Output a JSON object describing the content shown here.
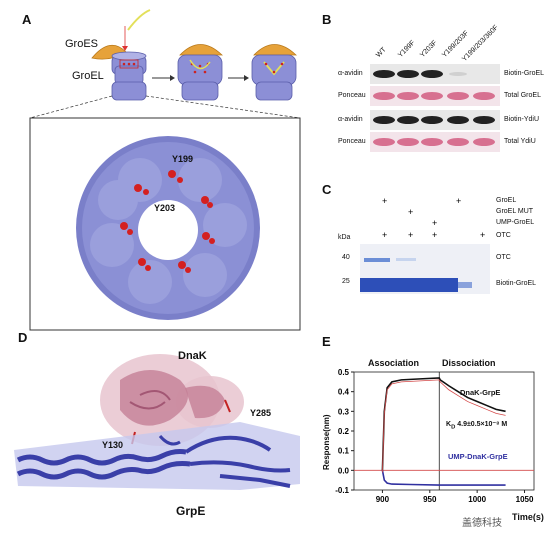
{
  "panels": {
    "a": "A",
    "b": "B",
    "c": "C",
    "d": "D",
    "e": "E"
  },
  "panel_a": {
    "groes_label": "GroES",
    "groel_label": "GroEL",
    "y199_label": "Y199",
    "y203_label": "Y203"
  },
  "panel_b": {
    "columns": [
      "WT",
      "Y199F",
      "Y203F",
      "Y199/203F",
      "Y199/203/360F"
    ],
    "rows": [
      {
        "left": "α-avidin",
        "right": "Biotin-GroEL"
      },
      {
        "left": "Ponceau",
        "right": "Total GroEL"
      },
      {
        "left": "α-avidin",
        "right": "Biotin-YdiU"
      },
      {
        "left": "Ponceau",
        "right": "Total YdiU"
      }
    ]
  },
  "panel_c": {
    "conditions": [
      "GroEL",
      "GroEL MUT",
      "UMP-GroEL",
      "OTC"
    ],
    "kda_label": "kDa",
    "marker_40": "40",
    "marker_25": "25",
    "band_otc": "OTC",
    "band_biotin": "Biotin-GroEL"
  },
  "panel_d": {
    "dnak_label": "DnaK",
    "y285_label": "Y285",
    "y130_label": "Y130",
    "grpe_label": "GrpE"
  },
  "panel_e": {
    "association": "Association",
    "dissociation": "Dissociation",
    "legend_dnak": "DnaK-GrpE",
    "kd_label": "K",
    "kd_sub": "D",
    "kd_value": "4.9±0.5×10⁻⁸ M",
    "legend_ump": "UMP-DnaK-GrpE",
    "ylabel": "Response(nm)",
    "xlabel": "Time(s)",
    "watermark": "盖德科技",
    "colors": {
      "dnak": "#111111",
      "ump": "#3030a0",
      "fit": "#d44a4a"
    }
  },
  "chart_data": {
    "type": "line",
    "xlabel": "Time(s)",
    "ylabel": "Response(nm)",
    "xlim": [
      870,
      1060
    ],
    "ylim": [
      -0.1,
      0.5
    ],
    "xticks": [
      900,
      950,
      1000,
      1050
    ],
    "yticks": [
      -0.1,
      0.0,
      0.1,
      0.2,
      0.3,
      0.4,
      0.5
    ],
    "series": [
      {
        "name": "DnaK-GrpE",
        "x": [
          900,
          902,
          905,
          910,
          920,
          940,
          960,
          961,
          970,
          980,
          990,
          1000,
          1010,
          1020,
          1030
        ],
        "values": [
          0.0,
          0.3,
          0.42,
          0.45,
          0.46,
          0.465,
          0.47,
          0.46,
          0.43,
          0.4,
          0.37,
          0.35,
          0.33,
          0.31,
          0.3
        ]
      },
      {
        "name": "UMP-DnaK-GrpE",
        "x": [
          900,
          902,
          905,
          910,
          930,
          960,
          980,
          1000,
          1030
        ],
        "values": [
          0.0,
          -0.05,
          -0.065,
          -0.07,
          -0.072,
          -0.075,
          -0.075,
          -0.075,
          -0.075
        ]
      }
    ]
  }
}
